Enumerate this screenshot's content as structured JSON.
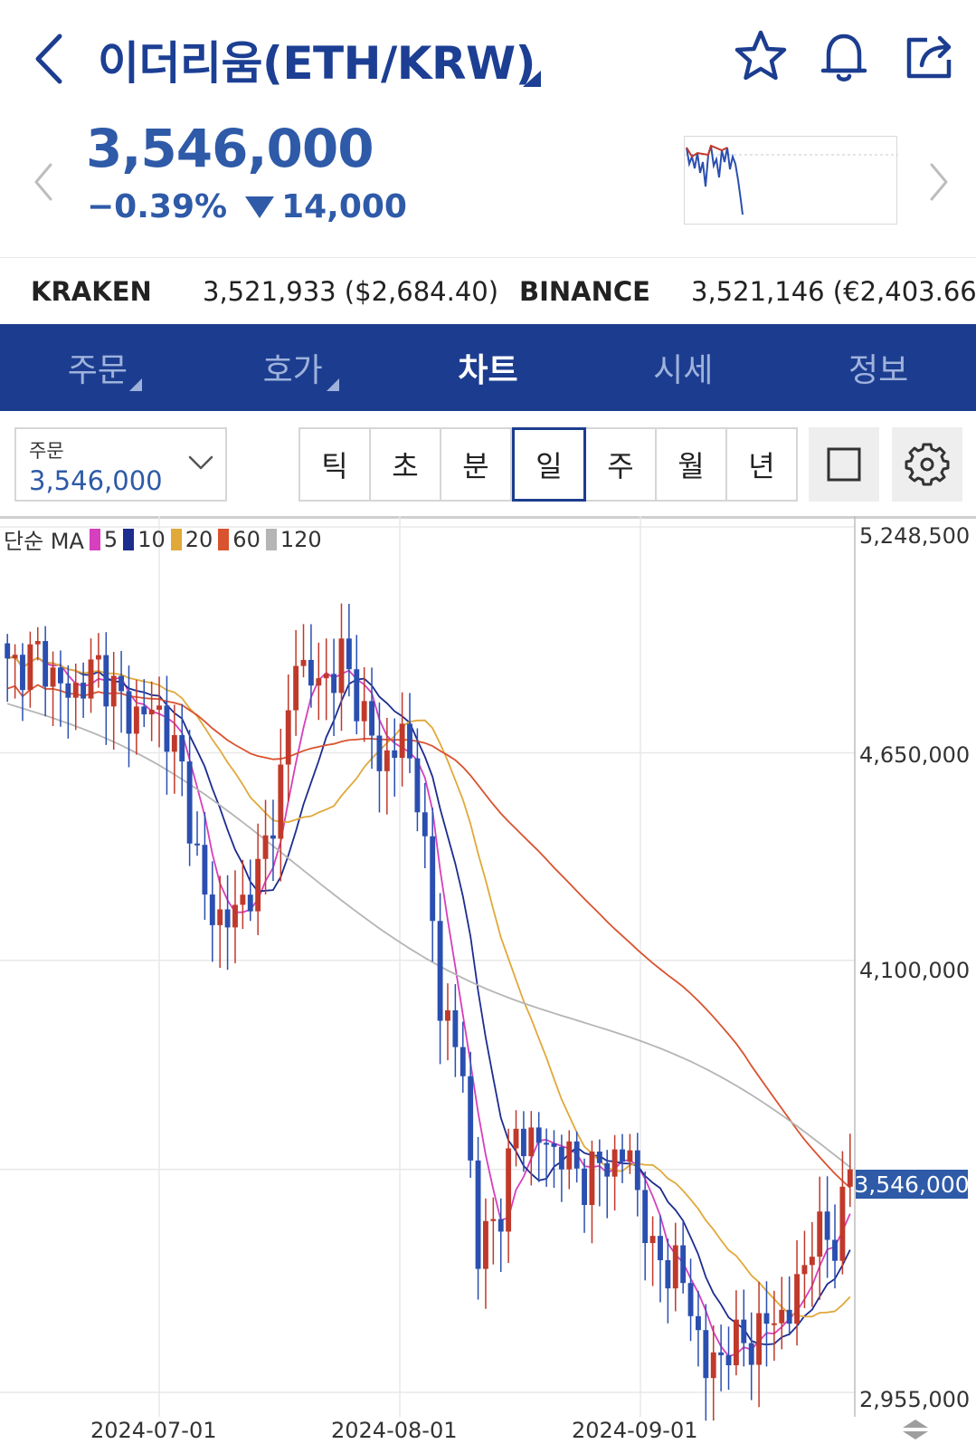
{
  "header": {
    "title": "이더리움(ETH/KRW)",
    "icons": [
      "back-icon",
      "star-icon",
      "bell-icon",
      "share-icon"
    ]
  },
  "quote": {
    "price": "3,546,000",
    "change_pct": "−0.39%",
    "change_abs": "14,000",
    "direction": "down",
    "down_color": "#2e5aa8",
    "up_color": "#c0392b"
  },
  "exchanges": [
    {
      "name": "KRAKEN",
      "value": "3,521,933 ($2,684.40)"
    },
    {
      "name": "BINANCE",
      "value": "3,521,146 (€2,403.66)"
    }
  ],
  "nav": {
    "tabs": [
      {
        "label": "주문",
        "has_corner": true
      },
      {
        "label": "호가",
        "has_corner": true
      },
      {
        "label": "차트",
        "active": true
      },
      {
        "label": "시세"
      },
      {
        "label": "정보"
      }
    ],
    "background": "#1c3d8f"
  },
  "toolbar": {
    "order_label": "주문",
    "order_value": "3,546,000",
    "periods": [
      "틱",
      "초",
      "분",
      "일",
      "주",
      "월",
      "년"
    ],
    "active_period": "일"
  },
  "chart_data": {
    "type": "candlestick",
    "legend_prefix": "단순 MA",
    "ma": [
      {
        "label": "5",
        "color": "#d63fbd"
      },
      {
        "label": "10",
        "color": "#1c2c8f"
      },
      {
        "label": "20",
        "color": "#e0a93a"
      },
      {
        "label": "60",
        "color": "#d9532f"
      },
      {
        "label": "120",
        "color": "#b5b5b5"
      }
    ],
    "y_ticks": [
      "5,248,500",
      "4,650,000",
      "4,100,000",
      "3,546,000",
      "2,955,000"
    ],
    "y_tick_values": [
      5248500,
      4650000,
      4100000,
      3546000,
      2955000
    ],
    "x_ticks": [
      "2024-07-01",
      "2024-08-01",
      "2024-09-01"
    ],
    "current_price": "3,546,000",
    "up_color": "#c0392b",
    "down_color": "#2a4fb0"
  }
}
